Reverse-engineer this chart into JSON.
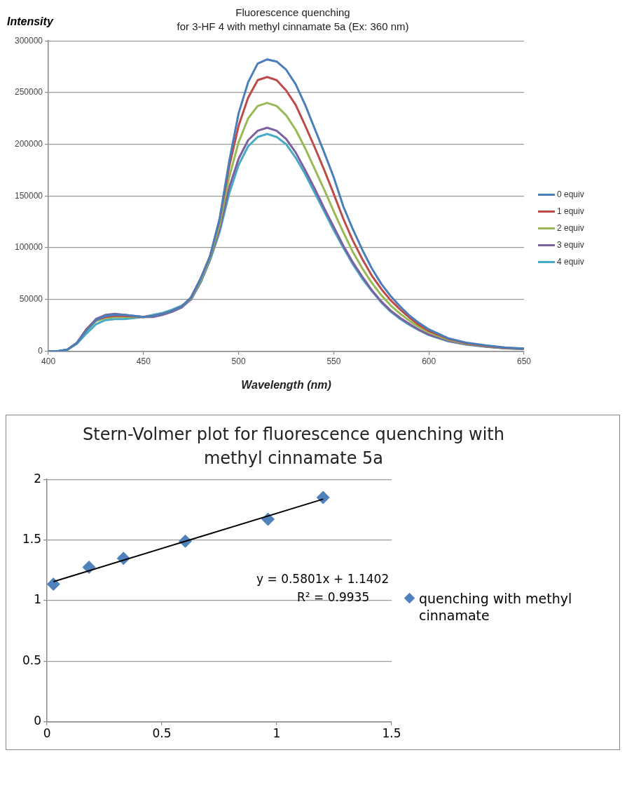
{
  "chart_data": [
    {
      "type": "line",
      "title": "Fluorescence quenching",
      "subtitle": "for 3-HF 4 with methyl cinnamate 5a (Ex: 360 nm)",
      "xlabel": "Wavelength (nm)",
      "ylabel": "Intensity",
      "x": [
        400,
        405,
        410,
        415,
        420,
        425,
        430,
        435,
        440,
        445,
        450,
        455,
        460,
        465,
        470,
        475,
        480,
        485,
        490,
        495,
        500,
        505,
        510,
        515,
        520,
        525,
        530,
        535,
        540,
        545,
        550,
        555,
        560,
        565,
        570,
        575,
        580,
        585,
        590,
        595,
        600,
        610,
        620,
        630,
        640,
        650
      ],
      "series": [
        {
          "name": "0 equiv",
          "color": "#4a7ebb",
          "values": [
            0,
            0,
            1500,
            8000,
            20000,
            30000,
            34000,
            35000,
            35000,
            34000,
            33000,
            34000,
            36000,
            39000,
            43000,
            52000,
            70000,
            92000,
            128000,
            183000,
            230000,
            260000,
            278000,
            282000,
            280000,
            272000,
            258000,
            238000,
            215000,
            192000,
            168000,
            140000,
            118000,
            98000,
            80000,
            65000,
            53000,
            43000,
            34000,
            27000,
            21000,
            12500,
            8000,
            5500,
            3500,
            2500
          ]
        },
        {
          "name": "1 equiv",
          "color": "#be4b48",
          "values": [
            null,
            null,
            1500,
            8000,
            21000,
            30000,
            33000,
            34000,
            34000,
            33500,
            33000,
            34000,
            36000,
            39000,
            43000,
            52000,
            70000,
            92000,
            127000,
            178000,
            218000,
            245000,
            262000,
            265000,
            262000,
            252000,
            238000,
            218000,
            197000,
            175000,
            152000,
            128000,
            107000,
            89000,
            73000,
            60000,
            49000,
            40000,
            32000,
            25000,
            19500,
            12000,
            7500,
            5000,
            3200,
            2300
          ]
        },
        {
          "name": "2 equiv",
          "color": "#98b954",
          "values": [
            null,
            null,
            null,
            8000,
            20000,
            29000,
            32000,
            33000,
            33000,
            33000,
            33000,
            34000,
            36000,
            39000,
            43000,
            51000,
            68000,
            90000,
            122000,
            168000,
            202000,
            225000,
            237000,
            240000,
            237000,
            228000,
            214000,
            196000,
            176000,
            156000,
            135000,
            115000,
            96000,
            80000,
            66000,
            54000,
            44000,
            36000,
            29000,
            23000,
            18000,
            11000,
            7000,
            4600,
            3000,
            2200
          ]
        },
        {
          "name": "3 equiv",
          "color": "#7d60a0",
          "values": [
            0,
            0,
            1500,
            8000,
            21000,
            31000,
            35000,
            36000,
            35000,
            34000,
            33000,
            33000,
            35000,
            38000,
            42000,
            50000,
            67000,
            89000,
            118000,
            158000,
            186000,
            204000,
            213000,
            216000,
            213000,
            205000,
            192000,
            175000,
            157000,
            138000,
            120000,
            102000,
            86000,
            72000,
            59000,
            48000,
            39000,
            32000,
            26000,
            20500,
            16000,
            10000,
            6500,
            4300,
            2800,
            2000
          ]
        },
        {
          "name": "4 equiv",
          "color": "#46aac5",
          "values": [
            0,
            0,
            1500,
            7000,
            17000,
            26000,
            30000,
            31000,
            31000,
            32000,
            33000,
            35000,
            37000,
            40000,
            44000,
            50000,
            66000,
            88000,
            115000,
            152000,
            180000,
            198000,
            207000,
            210000,
            207000,
            200000,
            187000,
            171000,
            153000,
            135000,
            117000,
            100000,
            84000,
            70000,
            58000,
            47000,
            38000,
            31000,
            25000,
            20000,
            15500,
            9500,
            6200,
            4100,
            2700,
            1900
          ]
        }
      ],
      "xlim": [
        400,
        650
      ],
      "xticks": [
        400,
        450,
        500,
        550,
        600,
        650
      ],
      "ylim": [
        0,
        300000
      ],
      "yticks": [
        0,
        50000,
        100000,
        150000,
        200000,
        250000,
        300000
      ],
      "grid": "y",
      "legend": "right",
      "marker": "none",
      "line_style": "solid"
    },
    {
      "type": "scatter",
      "title": "Stern-Volmer plot for fluorescence quenching with methyl cinnamate 5a",
      "x": [
        0.028,
        0.183,
        0.333,
        0.602,
        0.962,
        1.202
      ],
      "series": [
        {
          "name": "quenching with methyl cinnamate",
          "color": "#4f81bd",
          "values": [
            1.135,
            1.275,
            1.348,
            1.49,
            1.671,
            1.85
          ]
        },
        {
          "type": "line",
          "color": "#000000",
          "marker": "none",
          "x": [
            0.028,
            1.202
          ],
          "values": [
            1.156,
            1.837
          ]
        }
      ],
      "annotations": [
        "y = 0.5801x + 1.1402",
        "R² = 0.9935"
      ],
      "xlim": [
        0,
        1.5
      ],
      "xticks": [
        0,
        0.5,
        1,
        1.5
      ],
      "ylim": [
        0,
        2
      ],
      "yticks": [
        0,
        0.5,
        1,
        1.5,
        2
      ],
      "grid": "y",
      "legend": "right",
      "marker": "diamond"
    }
  ]
}
